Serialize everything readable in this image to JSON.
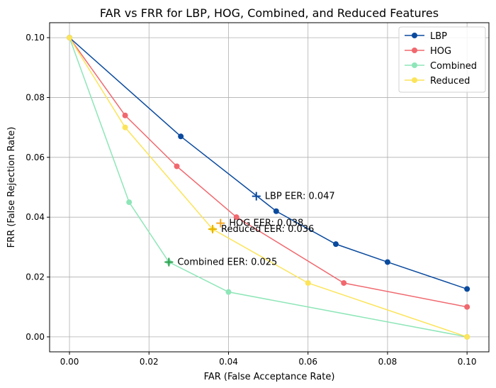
{
  "chart_data": {
    "type": "line",
    "title": "FAR vs FRR for LBP, HOG, Combined, and Reduced Features",
    "xlabel": "FAR (False Acceptance Rate)",
    "ylabel": "FRR (False Rejection Rate)",
    "xlim": [
      -0.005,
      0.1055
    ],
    "ylim": [
      -0.005,
      0.105
    ],
    "xticks": [
      0.0,
      0.02,
      0.04,
      0.06,
      0.08,
      0.1
    ],
    "yticks": [
      0.0,
      0.02,
      0.04,
      0.06,
      0.08,
      0.1
    ],
    "xtick_labels": [
      "0.00",
      "0.02",
      "0.04",
      "0.06",
      "0.08",
      "0.10"
    ],
    "ytick_labels": [
      "0.00",
      "0.02",
      "0.04",
      "0.06",
      "0.08",
      "0.10"
    ],
    "grid": true,
    "legend_position": "top-right",
    "series": [
      {
        "name": "LBP",
        "color": "#0a4a9e",
        "x": [
          0.0,
          0.028,
          0.052,
          0.067,
          0.08,
          0.1
        ],
        "y": [
          0.1,
          0.067,
          0.042,
          0.031,
          0.025,
          0.016
        ]
      },
      {
        "name": "HOG",
        "color": "#f0686e",
        "x": [
          0.0,
          0.014,
          0.027,
          0.042,
          0.069,
          0.1
        ],
        "y": [
          0.1,
          0.074,
          0.057,
          0.04,
          0.018,
          0.01
        ]
      },
      {
        "name": "Combined",
        "color": "#8ee6b8",
        "x": [
          0.0,
          0.015,
          0.025,
          0.04,
          0.1
        ],
        "y": [
          0.1,
          0.045,
          0.025,
          0.015,
          0.0
        ]
      },
      {
        "name": "Reduced",
        "color": "#fce45a",
        "x": [
          0.0,
          0.014,
          0.036,
          0.06,
          0.1
        ],
        "y": [
          0.1,
          0.07,
          0.036,
          0.018,
          0.0
        ]
      }
    ],
    "eer_points": [
      {
        "series": "LBP",
        "x": 0.047,
        "y": 0.047,
        "label": "LBP EER: 0.047",
        "color": "#0a4a9e"
      },
      {
        "series": "HOG",
        "x": 0.038,
        "y": 0.038,
        "label": "HOG EER: 0.038",
        "color": "#f5a623"
      },
      {
        "series": "Reduced",
        "x": 0.036,
        "y": 0.036,
        "label": "Reduced EER: 0.036",
        "color": "#e8b400"
      },
      {
        "series": "Combined",
        "x": 0.025,
        "y": 0.025,
        "label": "Combined EER: 0.025",
        "color": "#2e9e4e"
      }
    ]
  }
}
